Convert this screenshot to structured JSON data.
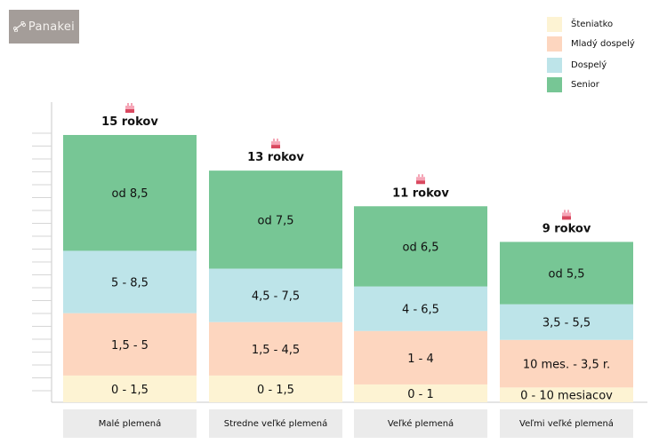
{
  "logo": {
    "text": "Panakei",
    "icon": "dog-bone-icon"
  },
  "legend": [
    {
      "label": "Šteniatko",
      "color": "#fdf3d3"
    },
    {
      "label": "Mladý dospelý",
      "color": "#fdd6bf"
    },
    {
      "label": "Dospelý",
      "color": "#bde4e9"
    },
    {
      "label": "Senior",
      "color": "#77c695"
    }
  ],
  "chart_data": {
    "type": "bar",
    "stacked": true,
    "categories": [
      "Malé plemená",
      "Stredne veľké plemená",
      "Veľké plemená",
      "Veľmi veľké plemená"
    ],
    "lifespan_years": [
      15,
      13,
      11,
      9
    ],
    "lifespan_labels": [
      "15 rokov",
      "13 rokov",
      "11 rokov",
      "9 rokov"
    ],
    "lifespan_icon": "birthday-cake-icon",
    "series": [
      {
        "name": "Šteniatko",
        "color": "#fdf3d3",
        "start": [
          0,
          0,
          0,
          0
        ],
        "end": [
          1.5,
          1.5,
          1,
          0.83
        ],
        "labels": [
          "0 - 1,5",
          "0 - 1,5",
          "0 - 1",
          "0 - 10 mesiacov"
        ]
      },
      {
        "name": "Mladý dospelý",
        "color": "#fdd6bf",
        "start": [
          1.5,
          1.5,
          1,
          0.83
        ],
        "end": [
          5,
          4.5,
          4,
          3.5
        ],
        "labels": [
          "1,5 - 5",
          "1,5 - 4,5",
          "1 - 4",
          "10 mes. - 3,5 r."
        ]
      },
      {
        "name": "Dospelý",
        "color": "#bde4e9",
        "start": [
          5,
          4.5,
          4,
          3.5
        ],
        "end": [
          8.5,
          7.5,
          6.5,
          5.5
        ],
        "labels": [
          "5 - 8,5",
          "4,5 - 7,5",
          "4 - 6,5",
          "3,5 - 5,5"
        ]
      },
      {
        "name": "Senior",
        "color": "#77c695",
        "start": [
          8.5,
          7.5,
          6.5,
          5.5
        ],
        "end": [
          15,
          13,
          11,
          9
        ],
        "labels": [
          "od 8,5",
          "od 7,5",
          "od 6,5",
          "od 5,5"
        ]
      }
    ],
    "ylim": [
      0,
      15
    ],
    "xlabel": "",
    "ylabel": "",
    "legend_position": "top-right",
    "grid": false
  }
}
